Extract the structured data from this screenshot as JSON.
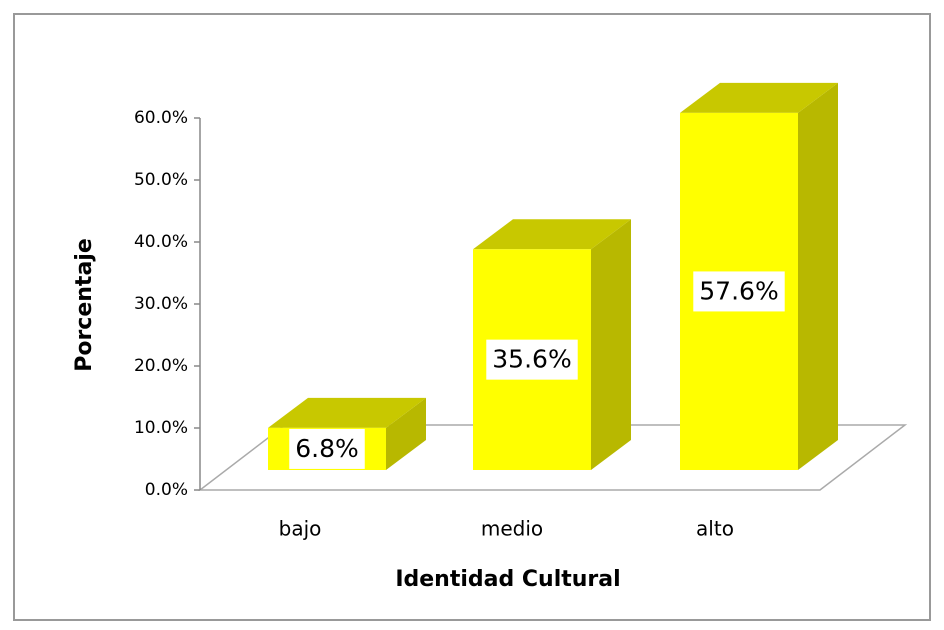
{
  "chart_data": {
    "type": "bar3d",
    "categories": [
      "bajo",
      "medio",
      "alto"
    ],
    "values": [
      6.8,
      35.6,
      57.6
    ],
    "value_labels": [
      "6.8%",
      "35.6%",
      "57.6%"
    ],
    "color": "#ffff00",
    "xlabel": "Identidad Cultural",
    "ylabel": "Porcentaje",
    "ylim": [
      0,
      60
    ],
    "yticks": [
      {
        "value": 0,
        "label": "0.0%"
      },
      {
        "value": 10,
        "label": "10.0%"
      },
      {
        "value": 20,
        "label": "20.0%"
      },
      {
        "value": 30,
        "label": "30.0%"
      },
      {
        "value": 40,
        "label": "40.0%"
      },
      {
        "value": 50,
        "label": "50.0%"
      },
      {
        "value": 60,
        "label": "60.0%"
      }
    ]
  }
}
